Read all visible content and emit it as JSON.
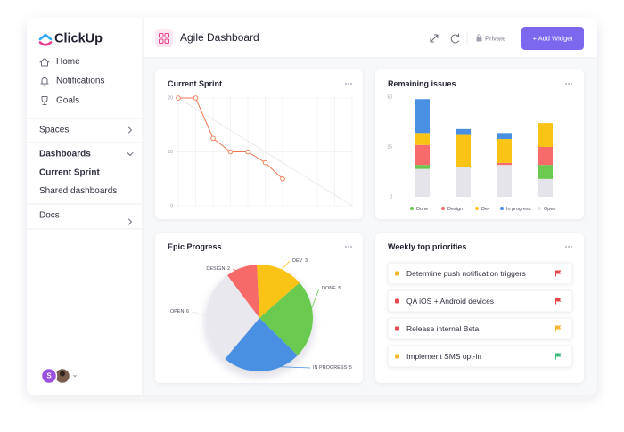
{
  "sidebar": {
    "brand": "ClickUp",
    "nav": [
      "Home",
      "Notifications",
      "Goals"
    ],
    "sections": [
      {
        "label": "Spaces"
      },
      {
        "label": "Dashboards",
        "items": [
          "Current Sprint",
          "Shared dashboards"
        ]
      },
      {
        "label": "Docs"
      }
    ],
    "avatar": "S"
  },
  "header": {
    "title": "Agile Dashboard",
    "privacy": "Private",
    "button": "+ Add Widget"
  },
  "chart_data": [
    {
      "type": "line",
      "title": "Current Sprint",
      "categories": [
        null,
        null,
        null,
        null,
        null,
        null,
        null,
        null,
        null,
        null,
        null
      ],
      "series": [
        {
          "color": "#ece4e4",
          "values": [
            20,
            18,
            16,
            14,
            12,
            10,
            8,
            6,
            4,
            2,
            0
          ],
          "markers": false
        },
        {
          "color": "#f0764f",
          "values": [
            20,
            20,
            12.5,
            10,
            10,
            8,
            5,
            null,
            null,
            null,
            null
          ],
          "markers": true
        }
      ],
      "ylim": [
        0,
        20
      ],
      "yticks": [
        0,
        10,
        20
      ],
      "grid": true
    },
    {
      "type": "stacked-bar",
      "title": "Remaining issues",
      "categories": [
        null,
        null,
        null,
        null
      ],
      "series": [
        {
          "name": "Done",
          "color": "#6bc950",
          "values": [
            2,
            0,
            0,
            7
          ]
        },
        {
          "name": "Design",
          "color": "#f76b6b",
          "values": [
            10,
            0,
            1,
            9
          ]
        },
        {
          "name": "Dev",
          "color": "#f9c416",
          "values": [
            6,
            16,
            12,
            12
          ]
        },
        {
          "name": "In progress",
          "color": "#4a90e2",
          "values": [
            17,
            3,
            3,
            0
          ]
        },
        {
          "name": "Open",
          "color": "#e4e4ea",
          "values": [
            14,
            15,
            16,
            9
          ]
        }
      ],
      "ylim": [
        0,
        50
      ],
      "yticks": [
        0,
        25,
        50
      ],
      "legend": "bottom"
    },
    {
      "type": "pie",
      "title": "Epic Progress",
      "categories": [
        "DESIGN",
        "DEV",
        "DONE",
        "IN PROGRESS",
        "OPEN"
      ],
      "values": [
        2,
        3,
        5,
        5,
        6
      ],
      "colors": [
        "#f76b6b",
        "#f9c416",
        "#6bc950",
        "#4a90e2",
        "#e8e8ee"
      ]
    }
  ],
  "priorities": {
    "title": "Weekly top priorities",
    "items": [
      {
        "text": "Determine push notification triggers",
        "color": "#f7b731",
        "flag": "#e5484d"
      },
      {
        "text": "QA iOS + Android devices",
        "color": "#e5484d",
        "flag": "#e5484d"
      },
      {
        "text": "Release internal Beta",
        "color": "#e5484d",
        "flag": "#f7b731"
      },
      {
        "text": "Implement SMS opt-in",
        "color": "#f7b731",
        "flag": "#3dbb7c"
      }
    ]
  }
}
